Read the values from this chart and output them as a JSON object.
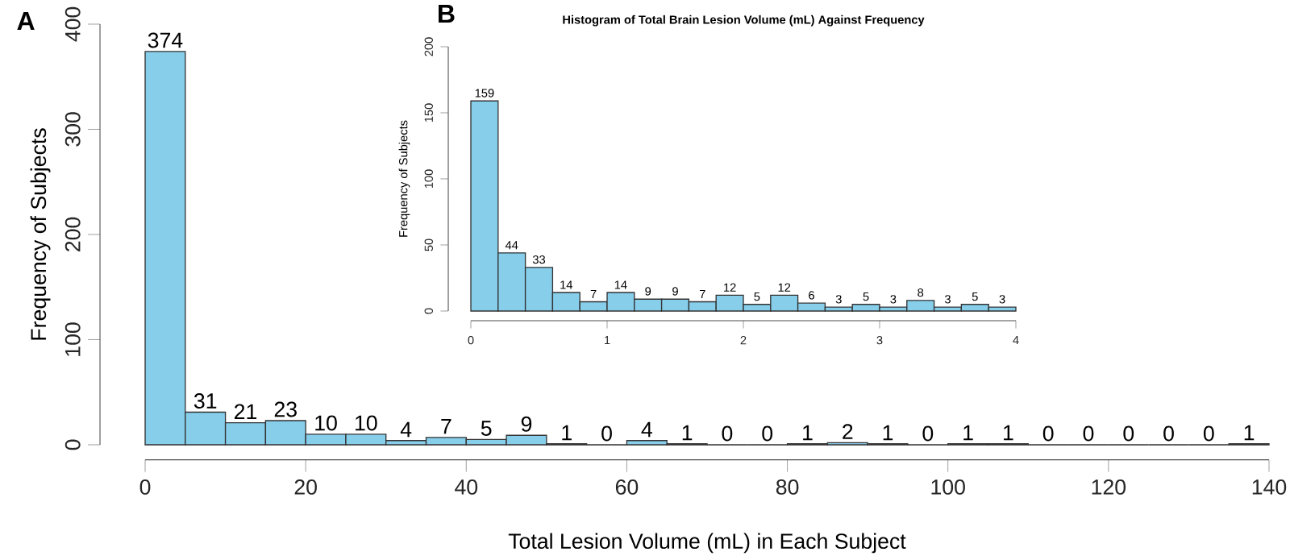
{
  "chart_data": [
    {
      "type": "histogram",
      "bins": [
        0,
        5,
        10,
        15,
        20,
        25,
        30,
        35,
        40,
        45,
        50,
        55,
        60,
        65,
        70,
        75,
        80,
        85,
        90,
        95,
        100,
        105,
        110,
        115,
        120,
        125,
        130,
        135,
        140
      ],
      "values": [
        374,
        31,
        21,
        23,
        10,
        10,
        4,
        7,
        5,
        9,
        1,
        0,
        4,
        1,
        0,
        0,
        1,
        2,
        1,
        0,
        1,
        1,
        0,
        0,
        0,
        0,
        0,
        1
      ],
      "color": "#87ceeb",
      "xlim": [
        0,
        140
      ],
      "ylim": [
        0,
        400
      ],
      "xticks": [
        0,
        20,
        40,
        60,
        80,
        100,
        120,
        140
      ],
      "yticks": [
        0,
        100,
        200,
        300,
        400
      ],
      "xlabel": "Total Lesion Volume (mL) in Each Subject",
      "ylabel": "Frequency of Subjects",
      "data_labels": true,
      "annotations": [
        "A"
      ]
    },
    {
      "type": "histogram",
      "title": "Histogram of Total Brain Lesion Volume (mL) Against Frequency",
      "bins": [
        0,
        0.2,
        0.4,
        0.6,
        0.8,
        1,
        1.2,
        1.4,
        1.6,
        1.8,
        2,
        2.2,
        2.4,
        2.6,
        2.8,
        3,
        3.2,
        3.4,
        3.6,
        3.8,
        4
      ],
      "values": [
        159,
        44,
        33,
        14,
        7,
        14,
        9,
        9,
        7,
        12,
        5,
        12,
        6,
        3,
        5,
        3,
        8,
        3,
        5,
        3
      ],
      "color": "#87ceeb",
      "xlim": [
        0,
        4
      ],
      "ylim": [
        0,
        200
      ],
      "xticks": [
        0,
        1,
        2,
        3,
        4
      ],
      "yticks": [
        0,
        50,
        100,
        150,
        200
      ],
      "ylabel": "Frequency of Subjects",
      "data_labels": true,
      "annotations": [
        "B"
      ]
    }
  ]
}
